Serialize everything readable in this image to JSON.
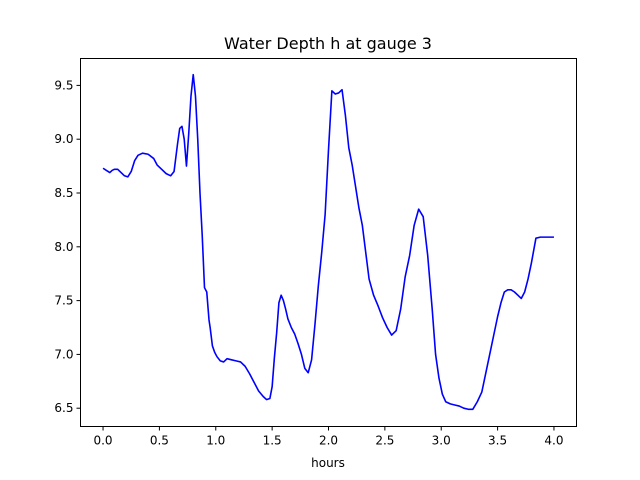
{
  "chart_data": {
    "type": "line",
    "title": "Water Depth h at gauge 3",
    "xlabel": "hours",
    "ylabel": "",
    "xlim": [
      -0.2,
      4.2
    ],
    "ylim": [
      6.33,
      9.75
    ],
    "xticks": [
      0.0,
      0.5,
      1.0,
      1.5,
      2.0,
      2.5,
      3.0,
      3.5,
      4.0
    ],
    "xtick_labels": [
      "0.0",
      "0.5",
      "1.0",
      "1.5",
      "2.0",
      "2.5",
      "3.0",
      "3.5",
      "4.0"
    ],
    "yticks": [
      6.5,
      7.0,
      7.5,
      8.0,
      8.5,
      9.0,
      9.5
    ],
    "ytick_labels": [
      "6.5",
      "7.0",
      "7.5",
      "8.0",
      "8.5",
      "9.0",
      "9.5"
    ],
    "grid": false,
    "series": [
      {
        "color": "#0000ff",
        "x": [
          0.0,
          0.03,
          0.06,
          0.08,
          0.1,
          0.13,
          0.16,
          0.19,
          0.22,
          0.25,
          0.28,
          0.31,
          0.35,
          0.4,
          0.45,
          0.48,
          0.52,
          0.56,
          0.6,
          0.63,
          0.66,
          0.68,
          0.7,
          0.72,
          0.74,
          0.76,
          0.78,
          0.8,
          0.82,
          0.84,
          0.86,
          0.88,
          0.9,
          0.92,
          0.94,
          0.95,
          0.97,
          0.99,
          1.01,
          1.04,
          1.07,
          1.1,
          1.14,
          1.18,
          1.22,
          1.26,
          1.3,
          1.34,
          1.38,
          1.42,
          1.45,
          1.48,
          1.5,
          1.52,
          1.54,
          1.56,
          1.58,
          1.6,
          1.62,
          1.64,
          1.67,
          1.7,
          1.73,
          1.76,
          1.79,
          1.82,
          1.85,
          1.88,
          1.91,
          1.94,
          1.97,
          2.0,
          2.03,
          2.06,
          2.09,
          2.12,
          2.15,
          2.18,
          2.21,
          2.24,
          2.27,
          2.3,
          2.33,
          2.36,
          2.4,
          2.44,
          2.48,
          2.52,
          2.56,
          2.6,
          2.64,
          2.68,
          2.72,
          2.76,
          2.8,
          2.84,
          2.88,
          2.92,
          2.95,
          2.98,
          3.01,
          3.04,
          3.08,
          3.12,
          3.16,
          3.2,
          3.24,
          3.28,
          3.32,
          3.36,
          3.4,
          3.44,
          3.47,
          3.5,
          3.53,
          3.56,
          3.59,
          3.62,
          3.65,
          3.68,
          3.71,
          3.74,
          3.77,
          3.8,
          3.84,
          3.88,
          3.91,
          3.94,
          3.97,
          4.0
        ],
        "y": [
          8.73,
          8.71,
          8.69,
          8.71,
          8.72,
          8.72,
          8.69,
          8.66,
          8.65,
          8.7,
          8.8,
          8.85,
          8.87,
          8.86,
          8.82,
          8.76,
          8.72,
          8.68,
          8.66,
          8.7,
          8.95,
          9.1,
          9.12,
          9.0,
          8.75,
          9.05,
          9.4,
          9.6,
          9.4,
          9.0,
          8.5,
          8.1,
          7.62,
          7.58,
          7.32,
          7.25,
          7.08,
          7.02,
          6.98,
          6.94,
          6.93,
          6.96,
          6.95,
          6.94,
          6.93,
          6.89,
          6.82,
          6.74,
          6.66,
          6.61,
          6.58,
          6.59,
          6.7,
          6.97,
          7.2,
          7.48,
          7.55,
          7.5,
          7.42,
          7.33,
          7.25,
          7.19,
          7.1,
          7.0,
          6.87,
          6.83,
          6.95,
          7.28,
          7.64,
          7.95,
          8.3,
          8.9,
          9.45,
          9.42,
          9.43,
          9.46,
          9.22,
          8.92,
          8.76,
          8.56,
          8.36,
          8.2,
          7.95,
          7.7,
          7.55,
          7.45,
          7.34,
          7.25,
          7.18,
          7.22,
          7.42,
          7.72,
          7.92,
          8.2,
          8.35,
          8.28,
          7.92,
          7.42,
          7.0,
          6.78,
          6.63,
          6.56,
          6.54,
          6.53,
          6.52,
          6.5,
          6.49,
          6.49,
          6.56,
          6.65,
          6.85,
          7.05,
          7.2,
          7.35,
          7.48,
          7.58,
          7.6,
          7.6,
          7.58,
          7.55,
          7.52,
          7.58,
          7.7,
          7.85,
          8.08,
          8.09,
          8.09,
          8.09,
          8.09,
          8.09
        ]
      }
    ]
  }
}
